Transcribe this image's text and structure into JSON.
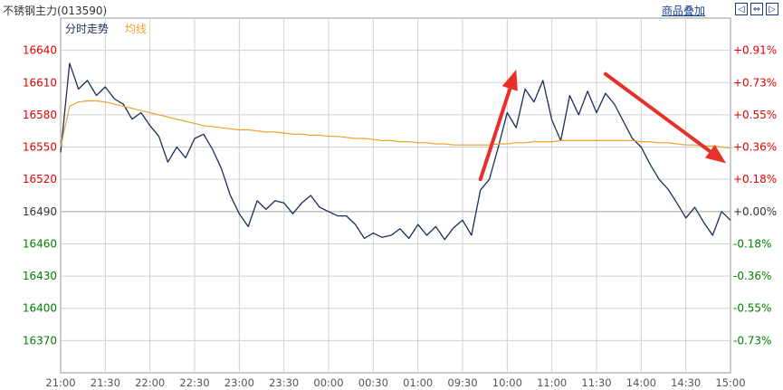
{
  "header": {
    "title": "不锈钢主力(013590)",
    "overlay_link": "商品叠加",
    "nav_buttons": [
      {
        "icon": "arrow-left-icon",
        "glyph": "◁"
      },
      {
        "icon": "arrow-expand-icon",
        "glyph": "⇔"
      },
      {
        "icon": "arrow-right-icon",
        "glyph": "▷"
      }
    ]
  },
  "colors": {
    "price_line": "#1b2d5b",
    "avg_line": "#f0a030",
    "up_text": "#e00000",
    "down_text": "#008000",
    "arrow": "#e8302a",
    "grid": "#d0d0d0",
    "ref_line": "#a0a0a0"
  },
  "chart_data": {
    "type": "line",
    "legend": [
      {
        "label": "分时走势",
        "color": "#1b2d5b"
      },
      {
        "label": "均线",
        "color": "#f0a030"
      }
    ],
    "ylim": [
      16340,
      16670
    ],
    "reference_price": 16490,
    "y_ticks": [
      16640,
      16610,
      16580,
      16550,
      16520,
      16490,
      16460,
      16430,
      16400,
      16370
    ],
    "y_ticks_right": [
      "+0.91%",
      "+0.73%",
      "+0.55%",
      "+0.36%",
      "+0.18%",
      "+0.00%",
      "-0.18%",
      "-0.36%",
      "-0.55%",
      "-0.73%"
    ],
    "x_ticks": [
      "21:00",
      "21:30",
      "22:00",
      "22:30",
      "23:00",
      "23:30",
      "00:00",
      "00:30",
      "01:00",
      "09:30",
      "10:00",
      "11:00",
      "11:30",
      "14:00",
      "14:30",
      "15:00"
    ],
    "grid": true,
    "series": [
      {
        "key": "price",
        "x": [
          0,
          1,
          2,
          3,
          4,
          5,
          6,
          7,
          8,
          9,
          10,
          11,
          12,
          13,
          14,
          15,
          16,
          17,
          18,
          19,
          20,
          21,
          22,
          23,
          24,
          25,
          26,
          27,
          28,
          29,
          30,
          31,
          32,
          33,
          34,
          35,
          36,
          37,
          38,
          39,
          40,
          41,
          42,
          43,
          44,
          45,
          46,
          47,
          48,
          49,
          50,
          51,
          52,
          53,
          54,
          55,
          56,
          57,
          58,
          59,
          60,
          61,
          62,
          63,
          64,
          65,
          66,
          67,
          68,
          69,
          70,
          71,
          72,
          73,
          74,
          75
        ],
        "values": [
          16545,
          16628,
          16604,
          16612,
          16598,
          16606,
          16595,
          16590,
          16576,
          16582,
          16570,
          16560,
          16536,
          16550,
          16540,
          16558,
          16562,
          16548,
          16530,
          16505,
          16488,
          16476,
          16500,
          16492,
          16500,
          16498,
          16488,
          16498,
          16505,
          16494,
          16490,
          16486,
          16486,
          16478,
          16465,
          16470,
          16466,
          16468,
          16474,
          16465,
          16478,
          16468,
          16476,
          16464,
          16475,
          16482,
          16468,
          16510,
          16520,
          16550,
          16582,
          16568,
          16604,
          16592,
          16612,
          16575,
          16556,
          16598,
          16580,
          16602,
          16582,
          16600,
          16590,
          16574,
          16558,
          16550,
          16534,
          16520,
          16511,
          16498,
          16484,
          16494,
          16480,
          16468,
          16490,
          16482
        ]
      },
      {
        "key": "average",
        "x": [
          0,
          1,
          2,
          3,
          4,
          5,
          6,
          7,
          8,
          9,
          10,
          11,
          12,
          13,
          14,
          15,
          16,
          17,
          18,
          19,
          20,
          21,
          22,
          23,
          24,
          25,
          26,
          27,
          28,
          29,
          30,
          31,
          32,
          33,
          34,
          35,
          36,
          37,
          38,
          39,
          40,
          41,
          42,
          43,
          44,
          45,
          46,
          47,
          48,
          49,
          50,
          51,
          52,
          53,
          54,
          55,
          56,
          57,
          58,
          59,
          60,
          61,
          62,
          63,
          64,
          65,
          66,
          67,
          68,
          69,
          70,
          71,
          72,
          73,
          74,
          75
        ],
        "values": [
          16550,
          16588,
          16592,
          16593,
          16593,
          16592,
          16590,
          16588,
          16586,
          16584,
          16582,
          16580,
          16578,
          16576,
          16574,
          16572,
          16570,
          16569,
          16568,
          16567,
          16566,
          16566,
          16565,
          16564,
          16564,
          16563,
          16562,
          16562,
          16561,
          16561,
          16560,
          16560,
          16559,
          16558,
          16558,
          16557,
          16556,
          16556,
          16555,
          16555,
          16554,
          16554,
          16553,
          16553,
          16552,
          16552,
          16552,
          16552,
          16552,
          16553,
          16553,
          16554,
          16554,
          16555,
          16555,
          16555,
          16556,
          16556,
          16556,
          16556,
          16556,
          16556,
          16556,
          16556,
          16556,
          16555,
          16555,
          16554,
          16554,
          16553,
          16552,
          16552,
          16551,
          16551,
          16550,
          16549
        ]
      }
    ],
    "annotations": [
      {
        "type": "arrow",
        "from": [
          47,
          16520
        ],
        "to": [
          51,
          16622
        ]
      },
      {
        "type": "arrow",
        "from": [
          61,
          16618
        ],
        "to": [
          74.5,
          16535
        ]
      }
    ]
  }
}
